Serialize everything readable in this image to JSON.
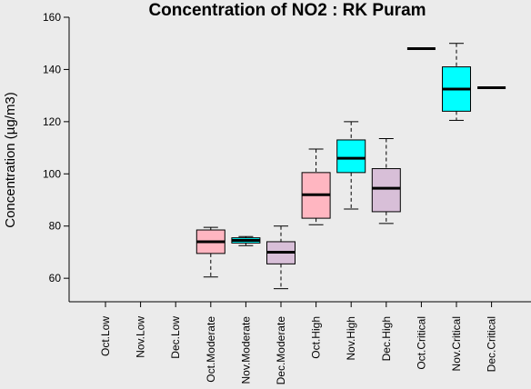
{
  "chart_data": {
    "type": "box",
    "title": "Concentration of NO2 : RK Puram",
    "ylabel": "Concentration (µg/m3)",
    "xlabel": "",
    "ylim": [
      51,
      160
    ],
    "yticks": [
      60,
      80,
      100,
      120,
      140,
      160
    ],
    "grid": false,
    "categories": [
      "Oct.Low",
      "Nov.Low",
      "Dec.Low",
      "Oct.Moderate",
      "Nov.Moderate",
      "Dec.Moderate",
      "Oct.High",
      "Nov.High",
      "Dec.High",
      "Oct.Critical",
      "Nov.Critical",
      "Dec.Critical"
    ],
    "boxes": [
      null,
      null,
      null,
      {
        "min": 60.5,
        "q1": 69.5,
        "median": 74,
        "q3": 78.5,
        "max": 79.5,
        "color": "#ffb6c1"
      },
      {
        "min": 72.5,
        "q1": 73.5,
        "median": 74.5,
        "q3": 75.5,
        "max": 76,
        "color": "#00ffff"
      },
      {
        "min": 56,
        "q1": 65.5,
        "median": 70,
        "q3": 74,
        "max": 80,
        "color": "#d8bfd8"
      },
      {
        "min": 80.5,
        "q1": 83,
        "median": 92,
        "q3": 100.5,
        "max": 109.5,
        "color": "#ffb6c1"
      },
      {
        "min": 86.5,
        "q1": 100.5,
        "median": 106,
        "q3": 113,
        "max": 120,
        "color": "#00ffff"
      },
      {
        "min": 81,
        "q1": 85.5,
        "median": 94.5,
        "q3": 102,
        "max": 113.5,
        "color": "#d8bfd8"
      },
      {
        "min": 148,
        "q1": 148,
        "median": 148,
        "q3": 148,
        "max": 148,
        "color": "#ffb6c1"
      },
      {
        "min": 120.5,
        "q1": 124,
        "median": 132.5,
        "q3": 141,
        "max": 150,
        "color": "#00ffff"
      },
      {
        "min": 133,
        "q1": 133,
        "median": 133,
        "q3": 133,
        "max": 133,
        "color": "#d8bfd8"
      }
    ]
  }
}
